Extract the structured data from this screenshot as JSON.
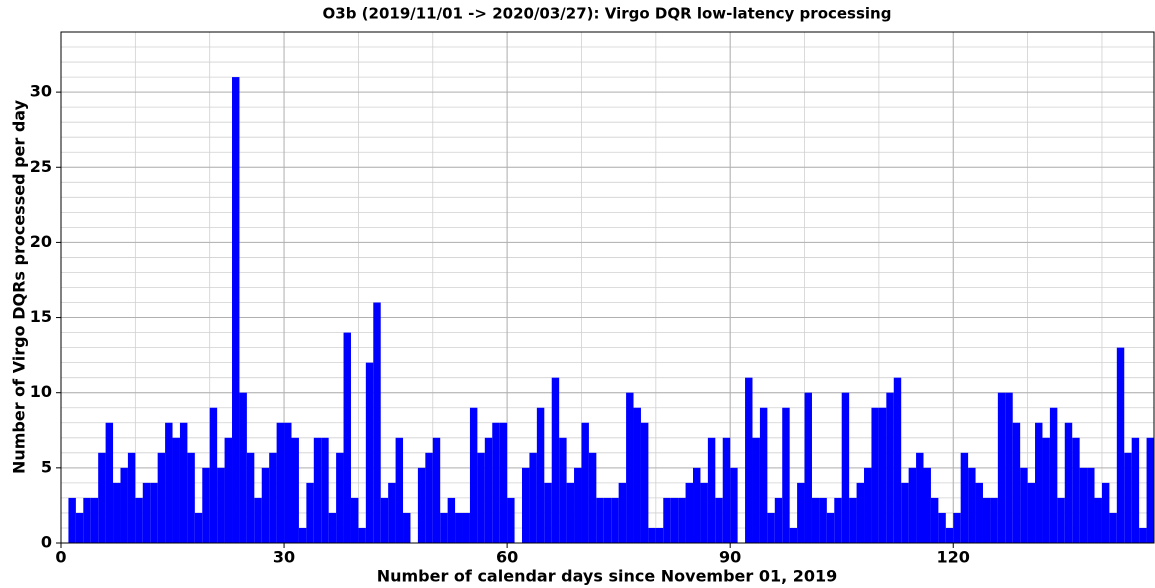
{
  "chart_data": {
    "type": "histogram",
    "title": "O3b (2019/11/01 -> 2020/03/27): Virgo DQR low-latency processing",
    "xlabel": "Number of calendar days since November 01, 2019",
    "ylabel": "Number of Virgo DQRs processed per day",
    "bins": [
      0,
      1,
      2,
      3,
      4,
      5,
      6,
      7,
      8,
      9,
      10,
      11,
      12,
      13,
      14,
      15,
      16,
      17,
      18,
      19,
      20,
      21,
      22,
      23,
      24,
      25,
      26,
      27,
      28,
      29,
      30,
      31,
      32,
      33,
      34,
      35,
      36,
      37,
      38,
      39,
      40,
      41,
      42,
      43,
      44,
      45,
      46,
      47,
      48,
      49,
      50,
      51,
      52,
      53,
      54,
      55,
      56,
      57,
      58,
      59,
      60,
      61,
      62,
      63,
      64,
      65,
      66,
      67,
      68,
      69,
      70,
      71,
      72,
      73,
      74,
      75,
      76,
      77,
      78,
      79,
      80,
      81,
      82,
      83,
      84,
      85,
      86,
      87,
      88,
      89,
      90,
      91,
      92,
      93,
      94,
      95,
      96,
      97,
      98,
      99,
      100,
      101,
      102,
      103,
      104,
      105,
      106,
      107,
      108,
      109,
      110,
      111,
      112,
      113,
      114,
      115,
      116,
      117,
      118,
      119,
      120,
      121,
      122,
      123,
      124,
      125,
      126,
      127,
      128,
      129,
      130,
      131,
      132,
      133,
      134,
      135,
      136,
      137,
      138,
      139,
      140,
      141,
      142,
      143,
      144,
      145,
      146,
      147
    ],
    "counts": [
      0,
      3,
      2,
      3,
      3,
      6,
      8,
      4,
      5,
      6,
      3,
      4,
      4,
      6,
      8,
      7,
      8,
      6,
      2,
      5,
      9,
      5,
      7,
      31,
      10,
      6,
      3,
      5,
      6,
      8,
      8,
      7,
      1,
      4,
      7,
      7,
      2,
      6,
      14,
      3,
      1,
      12,
      16,
      3,
      4,
      7,
      2,
      0,
      5,
      6,
      7,
      2,
      3,
      2,
      2,
      9,
      6,
      7,
      8,
      8,
      3,
      0,
      5,
      6,
      9,
      4,
      11,
      7,
      4,
      5,
      8,
      6,
      3,
      3,
      3,
      4,
      10,
      9,
      8,
      1,
      1,
      3,
      3,
      3,
      4,
      5,
      4,
      7,
      3,
      7,
      5,
      0,
      11,
      7,
      9,
      2,
      3,
      9,
      1,
      4,
      10,
      3,
      3,
      2,
      3,
      10,
      3,
      4,
      5,
      9,
      9,
      10,
      11,
      4,
      5,
      6,
      5,
      3,
      2,
      1,
      2,
      6,
      5,
      4,
      3,
      3,
      10,
      10,
      8,
      5,
      4,
      8,
      7,
      9,
      3,
      8,
      7,
      5,
      5,
      3,
      4,
      2,
      13,
      6,
      7,
      1,
      7
    ],
    "color": "#0000ff",
    "xlim": [
      0,
      147
    ],
    "xticks": [
      0,
      30,
      60,
      90,
      120
    ],
    "ylim": [
      0,
      34
    ],
    "yticks": [
      0,
      5,
      10,
      15,
      20,
      25,
      30
    ],
    "grid": true
  }
}
